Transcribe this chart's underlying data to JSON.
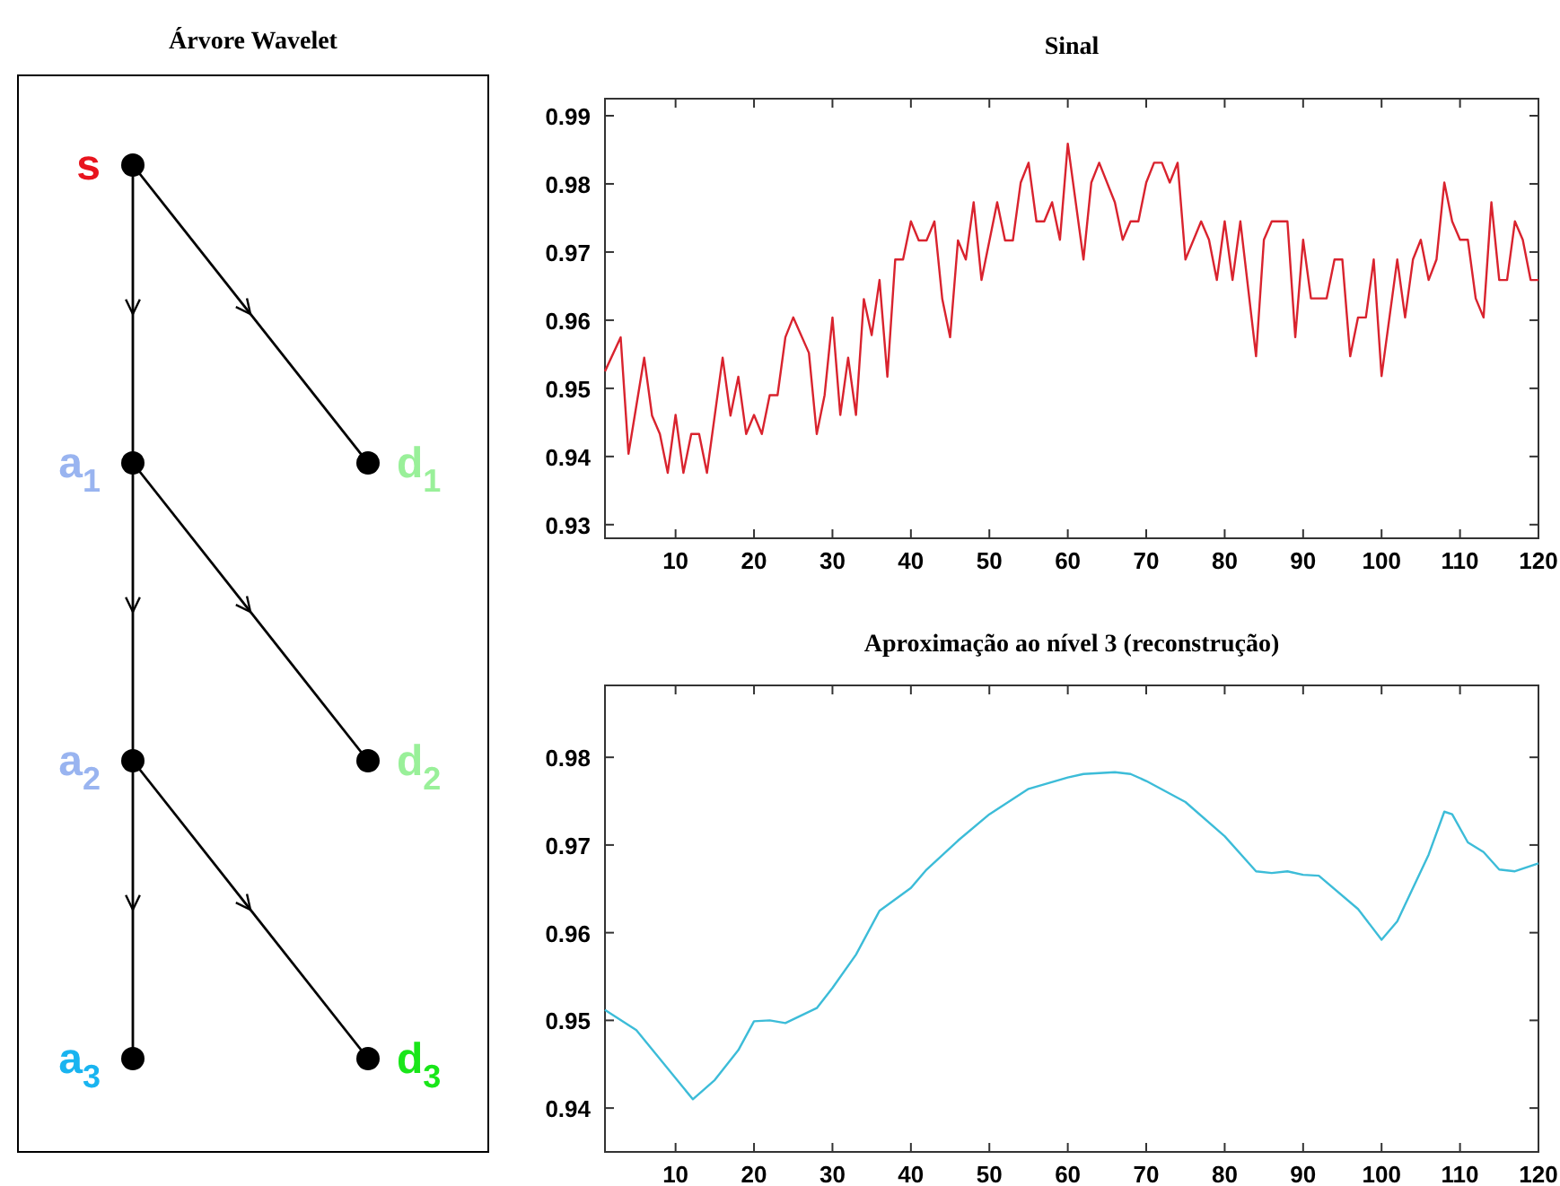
{
  "chart_data": [
    {
      "type": "other",
      "title": "Árvore Wavelet",
      "annotations": [
        "s",
        "a$_{1}$",
        "a$_{2}$",
        "a$_{3}$",
        "d$_{1}$",
        "d$_{2}$",
        "d$_{3}$"
      ]
    },
    {
      "type": "line",
      "title": "Sinal",
      "xlim": [
        1,
        120
      ],
      "xticks": [
        10,
        20,
        30,
        40,
        50,
        60,
        70,
        80,
        90,
        100,
        110,
        120
      ],
      "ylim": [
        0.928,
        0.9925
      ],
      "yticks": [
        0.93,
        0.94,
        0.95,
        0.96,
        0.97,
        0.98,
        0.99
      ],
      "grid": false,
      "series": [
        {
          "color": "#d9232e",
          "x": [
            1,
            3,
            4,
            6,
            7,
            8,
            9,
            10,
            11,
            12,
            13,
            14,
            16,
            17,
            18,
            19,
            20,
            21,
            22,
            23,
            24,
            25,
            27,
            28,
            29,
            30,
            31,
            32,
            33,
            34,
            35,
            36,
            37,
            38,
            39,
            40,
            41,
            42,
            43,
            44,
            45,
            46,
            47,
            48,
            49,
            51,
            52,
            53,
            54,
            55,
            56,
            57,
            58,
            59,
            60,
            62,
            63,
            64,
            66,
            67,
            68,
            69,
            70,
            71,
            72,
            73,
            74,
            75,
            77,
            78,
            79,
            80,
            81,
            82,
            84,
            85,
            86,
            88,
            89,
            90,
            91,
            93,
            94,
            95,
            96,
            97,
            98,
            99,
            100,
            102,
            103,
            104,
            105,
            106,
            107,
            108,
            109,
            110,
            111,
            112,
            113,
            114,
            115,
            116,
            117,
            118,
            119,
            120
          ],
          "values": [
            0.9525,
            0.9575,
            0.9404,
            0.9545,
            0.946,
            0.9433,
            0.9376,
            0.9461,
            0.9376,
            0.9433,
            0.9433,
            0.9376,
            0.9545,
            0.946,
            0.9517,
            0.9433,
            0.9461,
            0.9433,
            0.949,
            0.949,
            0.9575,
            0.9604,
            0.9552,
            0.9433,
            0.949,
            0.9604,
            0.9461,
            0.9545,
            0.9461,
            0.9631,
            0.9578,
            0.9659,
            0.9517,
            0.9689,
            0.9689,
            0.9745,
            0.9717,
            0.9717,
            0.9745,
            0.9631,
            0.9575,
            0.9717,
            0.9689,
            0.9773,
            0.9659,
            0.9773,
            0.9717,
            0.9717,
            0.9802,
            0.9831,
            0.9745,
            0.9745,
            0.9773,
            0.9718,
            0.9859,
            0.9689,
            0.9802,
            0.9831,
            0.9773,
            0.9718,
            0.9745,
            0.9745,
            0.9802,
            0.9831,
            0.9831,
            0.9802,
            0.9831,
            0.9689,
            0.9745,
            0.9718,
            0.9659,
            0.9745,
            0.9659,
            0.9745,
            0.9547,
            0.9718,
            0.9745,
            0.9745,
            0.9575,
            0.9718,
            0.9632,
            0.9632,
            0.9689,
            0.9689,
            0.9547,
            0.9604,
            0.9604,
            0.9689,
            0.9518,
            0.9689,
            0.9604,
            0.9689,
            0.9718,
            0.9659,
            0.9689,
            0.9802,
            0.9745,
            0.9718,
            0.9718,
            0.9632,
            0.9604,
            0.9773,
            0.9659,
            0.9659,
            0.9745,
            0.9718,
            0.9659,
            0.9659
          ]
        }
      ]
    },
    {
      "type": "line",
      "title": "Aproximação ao nível 3 (reconstrução)",
      "xlim": [
        1,
        120
      ],
      "xticks": [
        10,
        20,
        30,
        40,
        50,
        60,
        70,
        80,
        90,
        100,
        110,
        120
      ],
      "ylim": [
        0.935,
        0.9882
      ],
      "yticks": [
        0.94,
        0.95,
        0.96,
        0.97,
        0.98
      ],
      "grid": false,
      "series": [
        {
          "color": "#3cbcd8",
          "x": [
            1,
            5,
            12.2,
            15,
            18,
            20,
            22,
            24,
            28,
            30,
            33,
            36,
            40,
            42,
            46,
            50,
            55,
            60,
            62,
            66,
            68,
            70,
            75,
            80,
            84,
            86,
            88,
            90,
            92,
            97,
            100,
            102,
            106,
            108,
            109,
            111,
            113,
            115,
            117,
            120
          ],
          "values": [
            0.9512,
            0.9489,
            0.941,
            0.9432,
            0.9466,
            0.9499,
            0.95,
            0.9497,
            0.9514,
            0.9537,
            0.9575,
            0.9625,
            0.9651,
            0.9672,
            0.9705,
            0.9735,
            0.9764,
            0.9777,
            0.9781,
            0.9783,
            0.9781,
            0.9773,
            0.9749,
            0.971,
            0.967,
            0.9668,
            0.967,
            0.9666,
            0.9665,
            0.9627,
            0.9592,
            0.9613,
            0.9689,
            0.9738,
            0.9735,
            0.9703,
            0.9692,
            0.9672,
            0.967,
            0.9679
          ]
        }
      ]
    }
  ]
}
